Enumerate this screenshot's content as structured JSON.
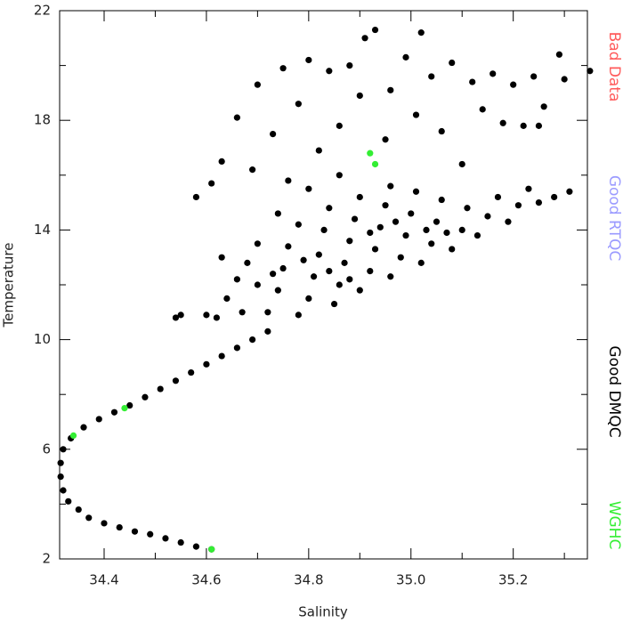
{
  "chart_data": {
    "type": "scatter",
    "x_label": "Salinity",
    "y_label": "Temperature",
    "xlim": [
      34.313,
      35.345
    ],
    "ylim": [
      2,
      22
    ],
    "xticks": [
      34.4,
      34.6,
      34.8,
      {
        "value": 35,
        "label": "35.0"
      },
      35.2
    ],
    "xticks_minor": [
      34.5,
      34.7,
      34.9,
      35.1,
      35.3
    ],
    "yticks": [
      2,
      6,
      10,
      14,
      18,
      22
    ],
    "yticks_minor": [
      4,
      8,
      12,
      16,
      20
    ],
    "series": [
      {
        "name": "Bad Data",
        "color": "#ff5a5a",
        "x": [],
        "y": []
      },
      {
        "name": "Good RTQC",
        "color": "#9a9aff",
        "x": [],
        "y": []
      },
      {
        "name": "Good DMQC",
        "color": "#000000",
        "x": [
          34.61,
          34.58,
          34.55,
          34.52,
          34.49,
          34.46,
          34.43,
          34.4,
          34.37,
          34.35,
          34.33,
          34.32,
          34.315,
          34.315,
          34.32,
          34.335,
          34.36,
          34.39,
          34.42,
          34.45,
          34.48,
          34.51,
          34.54,
          34.57,
          34.6,
          34.63,
          34.66,
          34.69,
          34.72,
          34.62,
          34.64,
          34.66,
          34.68,
          34.7,
          34.72,
          34.74,
          34.75,
          34.76,
          34.78,
          34.78,
          34.8,
          34.81,
          34.82,
          34.83,
          34.84,
          34.85,
          34.86,
          34.87,
          34.88,
          34.89,
          34.9,
          34.9,
          34.92,
          34.93,
          34.94,
          34.95,
          34.96,
          34.96,
          34.98,
          34.99,
          35.0,
          35.01,
          35.02,
          35.04,
          35.05,
          35.06,
          35.08,
          35.1,
          35.11,
          35.13,
          35.15,
          35.17,
          35.19,
          35.21,
          35.23,
          35.25,
          35.28,
          35.31,
          34.6,
          34.67,
          34.7,
          34.73,
          34.79,
          34.84,
          34.88,
          34.92,
          34.97,
          35.03,
          35.07,
          34.63,
          34.74,
          34.8,
          34.86,
          34.76,
          34.63,
          34.66,
          34.7,
          34.73,
          34.75,
          34.78,
          34.8,
          34.82,
          34.84,
          34.86,
          34.88,
          34.9,
          34.91,
          34.93,
          34.95,
          34.96,
          34.99,
          35.01,
          35.02,
          35.04,
          35.06,
          35.08,
          35.1,
          35.12,
          35.14,
          35.16,
          35.18,
          35.2,
          35.22,
          35.24,
          35.26,
          35.29,
          35.3,
          35.35,
          34.58,
          34.61,
          34.55,
          34.54,
          34.69,
          35.25
        ],
        "y": [
          2.35,
          2.45,
          2.6,
          2.75,
          2.9,
          3.0,
          3.15,
          3.3,
          3.5,
          3.8,
          4.1,
          4.5,
          5.0,
          5.5,
          6.0,
          6.4,
          6.8,
          7.1,
          7.35,
          7.6,
          7.9,
          8.2,
          8.5,
          8.8,
          9.1,
          9.4,
          9.7,
          10.0,
          10.3,
          10.8,
          11.5,
          12.2,
          12.8,
          13.5,
          11.0,
          11.8,
          12.6,
          13.4,
          14.2,
          10.9,
          11.5,
          12.3,
          13.1,
          14.0,
          14.8,
          11.3,
          12.0,
          12.8,
          13.6,
          14.4,
          15.2,
          11.8,
          12.5,
          13.3,
          14.1,
          14.9,
          15.6,
          12.3,
          13.0,
          13.8,
          14.6,
          15.4,
          12.8,
          13.5,
          14.3,
          15.1,
          13.3,
          14.0,
          14.8,
          13.8,
          14.5,
          15.2,
          14.3,
          14.9,
          15.5,
          15.0,
          15.2,
          15.4,
          10.9,
          11.0,
          12.0,
          12.4,
          12.9,
          12.5,
          12.2,
          13.9,
          14.3,
          14.0,
          13.9,
          13.0,
          14.6,
          15.5,
          16.0,
          15.8,
          16.5,
          18.1,
          19.3,
          17.5,
          19.9,
          18.6,
          20.2,
          16.9,
          19.8,
          17.8,
          20.0,
          18.9,
          21.0,
          21.3,
          17.3,
          19.1,
          20.3,
          18.2,
          21.2,
          19.6,
          17.6,
          20.1,
          16.4,
          19.4,
          18.4,
          19.7,
          17.9,
          19.3,
          17.8,
          19.6,
          18.5,
          20.4,
          19.5,
          19.8,
          15.2,
          15.7,
          10.9,
          10.8,
          16.2,
          17.8
        ]
      },
      {
        "name": "WGHC",
        "color": "#33ee33",
        "x": [
          34.61,
          34.92,
          34.93,
          34.44,
          34.34
        ],
        "y": [
          2.35,
          16.8,
          16.4,
          7.5,
          6.5
        ]
      }
    ]
  }
}
